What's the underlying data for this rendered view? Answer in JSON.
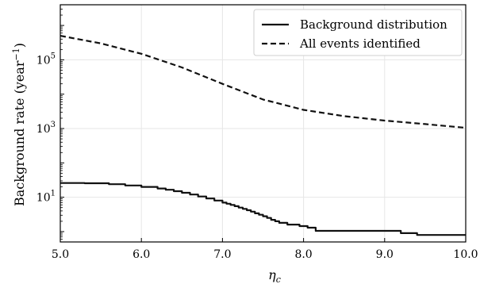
{
  "chart_data": {
    "type": "line",
    "xlabel_base": "η",
    "xlabel_sub": "c",
    "ylabel_main": "Background rate (year",
    "ylabel_exp": "−1",
    "ylabel_close": ")",
    "xlim": [
      5.0,
      10.0
    ],
    "ylim": [
      0.5,
      4000000
    ],
    "yscale": "log",
    "grid": true,
    "legend": "top-right",
    "x_ticks": [
      {
        "value": 5.0,
        "label": "5.0"
      },
      {
        "value": 6.0,
        "label": "6.0"
      },
      {
        "value": 7.0,
        "label": "7.0"
      },
      {
        "value": 8.0,
        "label": "8.0"
      },
      {
        "value": 9.0,
        "label": "9.0"
      },
      {
        "value": 10.0,
        "label": "10.0"
      }
    ],
    "y_ticks": [
      {
        "value": 10,
        "base": "10",
        "exp": "1"
      },
      {
        "value": 1000,
        "base": "10",
        "exp": "3"
      },
      {
        "value": 100000,
        "base": "10",
        "exp": "5"
      }
    ],
    "series": [
      {
        "name": "Background distribution",
        "style": "solid",
        "step": true,
        "x": [
          5.0,
          5.3,
          5.6,
          5.8,
          6.0,
          6.2,
          6.3,
          6.4,
          6.5,
          6.6,
          6.7,
          6.8,
          6.9,
          7.0,
          7.05,
          7.1,
          7.15,
          7.2,
          7.25,
          7.3,
          7.35,
          7.4,
          7.45,
          7.5,
          7.55,
          7.6,
          7.65,
          7.7,
          7.8,
          7.95,
          8.05,
          8.15,
          8.7,
          8.9,
          9.2,
          9.4,
          9.6,
          10.0
        ],
        "values": [
          26,
          25.5,
          24,
          22,
          20,
          18,
          16.5,
          15,
          13.5,
          12,
          10.5,
          9.2,
          8,
          7,
          6.5,
          6,
          5.5,
          5,
          4.6,
          4.2,
          3.8,
          3.4,
          3.1,
          2.8,
          2.5,
          2.2,
          2.0,
          1.8,
          1.6,
          1.45,
          1.3,
          1.05,
          1.05,
          1.05,
          0.9,
          0.8,
          0.8,
          0.8
        ]
      },
      {
        "name": "All events identified",
        "style": "dashed",
        "step": false,
        "x": [
          5.0,
          5.5,
          6.0,
          6.5,
          7.0,
          7.5,
          8.0,
          8.5,
          9.0,
          9.5,
          10.0
        ],
        "values": [
          500000,
          300000,
          150000,
          60000,
          20000,
          7000,
          3500,
          2300,
          1700,
          1350,
          1050
        ]
      }
    ]
  }
}
